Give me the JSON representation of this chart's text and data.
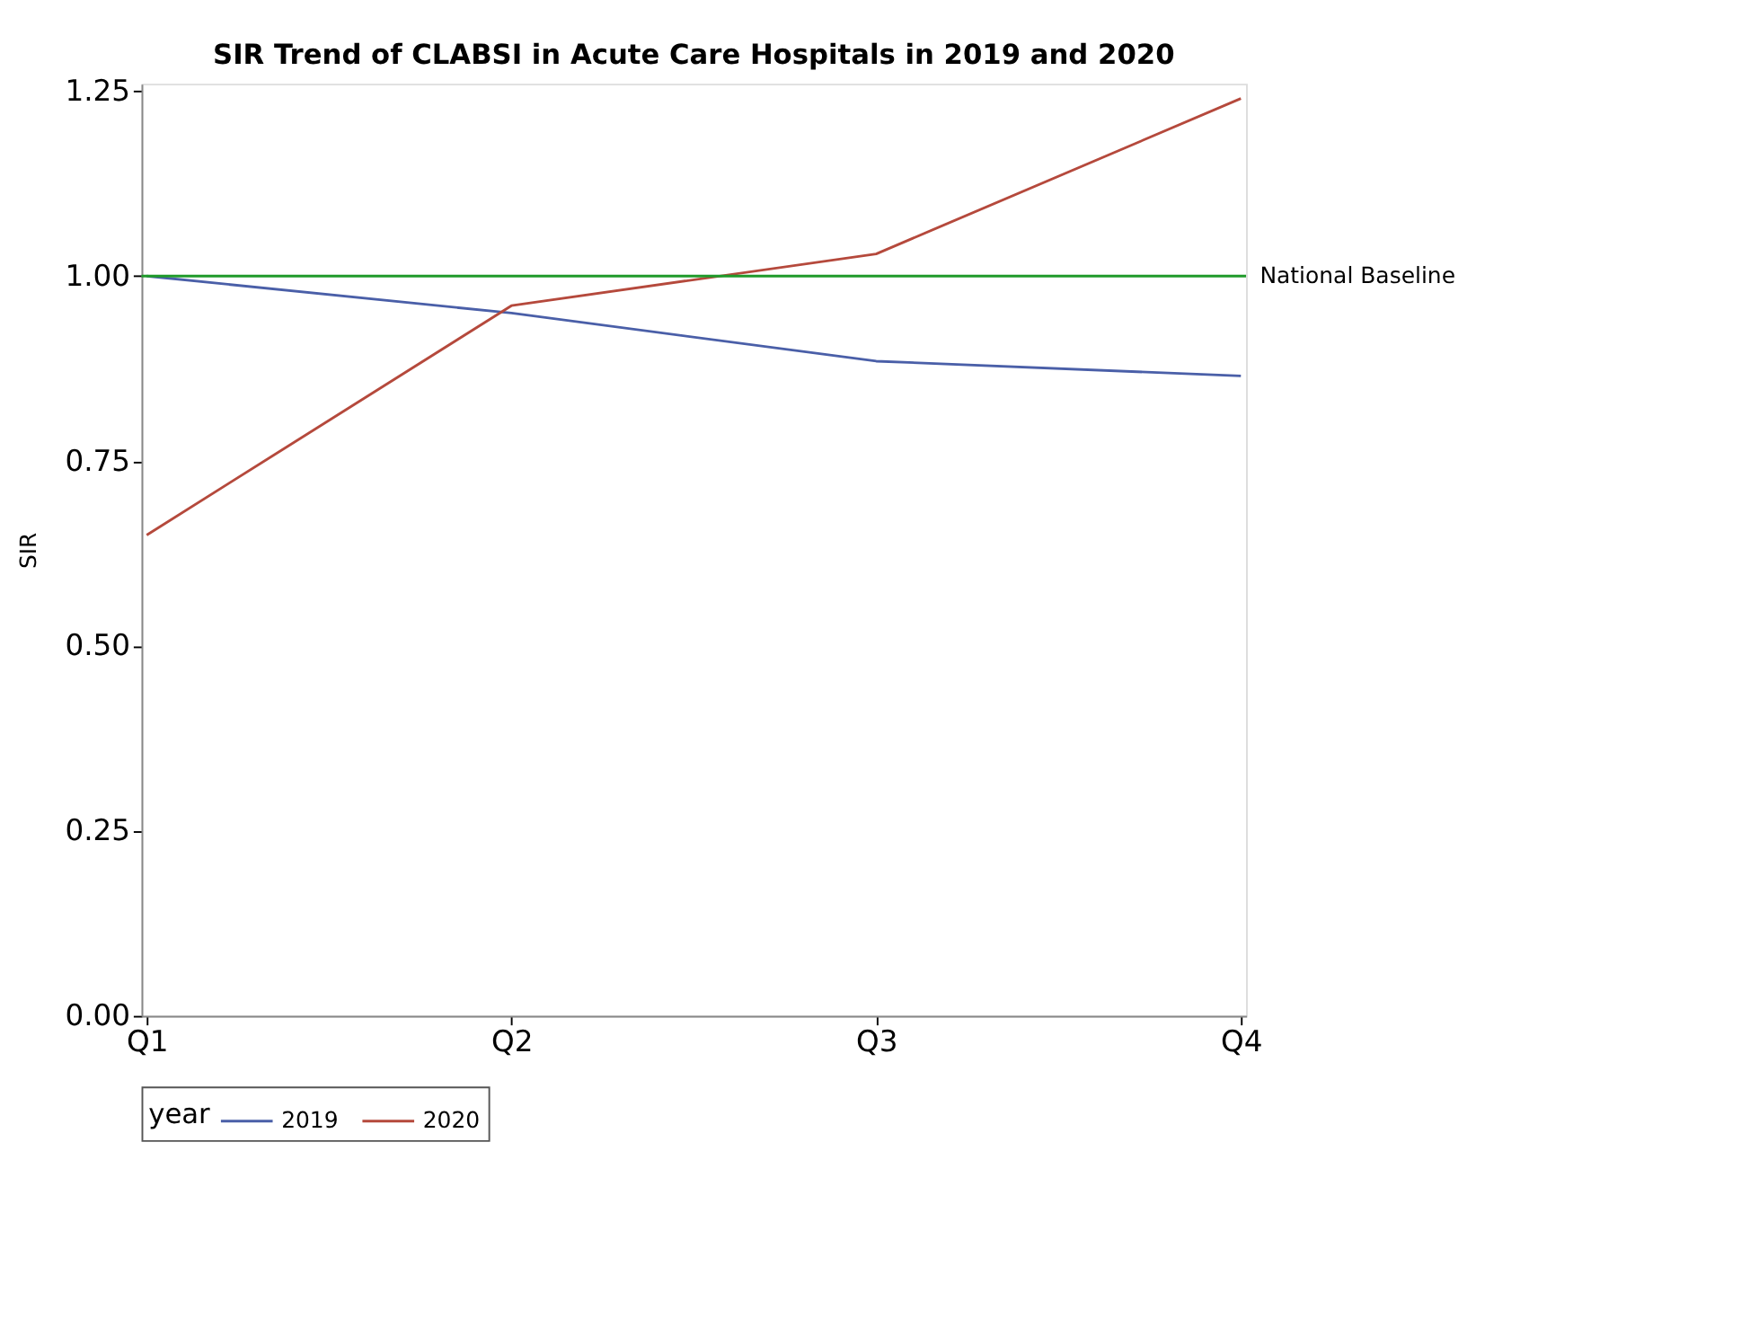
{
  "chart_data": {
    "type": "line",
    "title": "SIR Trend of CLABSI in Acute Care Hospitals in 2019 and 2020",
    "ylabel": "SIR",
    "legend_title": "year",
    "categories": [
      "Q1",
      "Q2",
      "Q3",
      "Q4"
    ],
    "series": [
      {
        "name": "2019",
        "color": "#4a5fa8",
        "values": [
          1.0,
          0.95,
          0.885,
          0.865
        ]
      },
      {
        "name": "2020",
        "color": "#b5493c",
        "values": [
          0.65,
          0.96,
          1.03,
          1.24
        ]
      }
    ],
    "ylim": [
      0,
      1.26
    ],
    "yticks": [
      {
        "value": 0,
        "label": "0.00"
      },
      {
        "value": 0.25,
        "label": "0.25"
      },
      {
        "value": 0.5,
        "label": "0.50"
      },
      {
        "value": 0.75,
        "label": "0.75"
      },
      {
        "value": 1,
        "label": "1.00"
      },
      {
        "value": 1.25,
        "label": "1.25"
      }
    ],
    "ref_lines": [
      {
        "axis": "y",
        "value": 1.0,
        "label": "National Baseline",
        "color": "#1f9a2a"
      }
    ],
    "grid": false,
    "legend": "bottom",
    "marker": "none",
    "line_style": "solid"
  }
}
